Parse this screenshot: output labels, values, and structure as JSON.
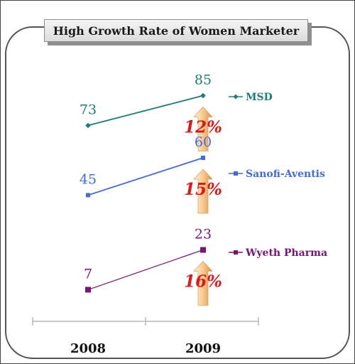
{
  "chart_data": {
    "type": "line",
    "title": "High Growth Rate of Women Marketer",
    "categories": [
      "2008",
      "2009"
    ],
    "series": [
      {
        "name": "MSD",
        "values": [
          73,
          85
        ],
        "growth": "12%",
        "color": "#1a7f70"
      },
      {
        "name": "Sanofi-Aventis",
        "values": [
          45,
          60
        ],
        "growth": "15%",
        "color": "#4169e1"
      },
      {
        "name": "Wyeth Pharma",
        "values": [
          7,
          23
        ],
        "growth": "16%",
        "color": "#7b1479"
      }
    ],
    "legend_position": "right",
    "grid": false
  },
  "colors": {
    "arrow_light": "#fde7c9",
    "arrow_dark": "#e3a25a",
    "growth_text": "#e01818",
    "axis": "#b8b8b8"
  }
}
